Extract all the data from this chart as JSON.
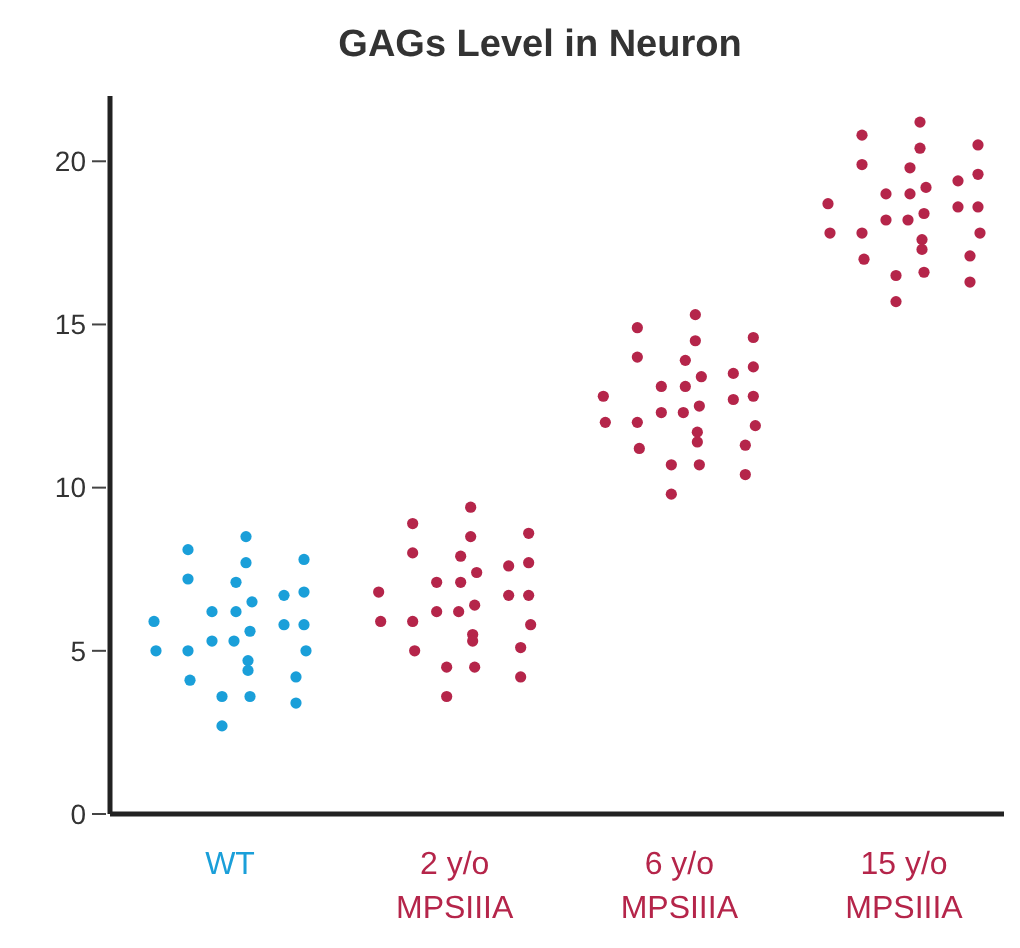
{
  "chart_data": {
    "type": "scatter",
    "title": "GAGs Level in Neuron",
    "categories": [
      "WT",
      "2 y/o MPSIIIA",
      "6 y/o MPSIIIA",
      "15 y/o MPSIIIA"
    ],
    "ylim": [
      0,
      22
    ],
    "yticks": [
      0,
      5,
      10,
      15,
      20
    ],
    "grid": false,
    "marker": "circle",
    "series": [
      {
        "color": "#1a9fd9",
        "x": [
          "WT",
          "WT",
          "WT",
          "WT",
          "WT",
          "WT",
          "WT",
          "WT",
          "WT",
          "WT",
          "WT",
          "WT",
          "WT",
          "WT",
          "WT",
          "WT",
          "WT",
          "WT",
          "WT",
          "WT",
          "WT",
          "WT",
          "WT",
          "WT",
          "WT",
          "WT",
          "WT",
          "WT"
        ],
        "values": [
          5.9,
          5.0,
          8.1,
          7.2,
          5.0,
          4.1,
          6.2,
          5.3,
          3.6,
          2.7,
          7.1,
          6.2,
          5.3,
          8.5,
          7.7,
          6.5,
          5.6,
          4.7,
          4.4,
          3.6,
          6.7,
          5.8,
          4.2,
          3.4,
          7.8,
          6.8,
          5.8,
          5.0
        ]
      },
      {
        "color": "#b5254a",
        "x": [
          "2 y/o MPSIIIA",
          "2 y/o MPSIIIA",
          "2 y/o MPSIIIA",
          "2 y/o MPSIIIA",
          "2 y/o MPSIIIA",
          "2 y/o MPSIIIA",
          "2 y/o MPSIIIA",
          "2 y/o MPSIIIA",
          "2 y/o MPSIIIA",
          "2 y/o MPSIIIA",
          "2 y/o MPSIIIA",
          "2 y/o MPSIIIA",
          "2 y/o MPSIIIA",
          "2 y/o MPSIIIA",
          "2 y/o MPSIIIA",
          "2 y/o MPSIIIA",
          "2 y/o MPSIIIA",
          "2 y/o MPSIIIA",
          "2 y/o MPSIIIA",
          "2 y/o MPSIIIA",
          "2 y/o MPSIIIA",
          "2 y/o MPSIIIA",
          "2 y/o MPSIIIA",
          "2 y/o MPSIIIA",
          "2 y/o MPSIIIA",
          "2 y/o MPSIIIA",
          "2 y/o MPSIIIA",
          "2 y/o MPSIIIA"
        ],
        "values": [
          6.8,
          5.9,
          8.9,
          8.0,
          5.9,
          5.0,
          7.1,
          6.2,
          4.5,
          3.6,
          7.9,
          7.1,
          6.2,
          9.4,
          8.5,
          7.4,
          6.4,
          5.5,
          5.3,
          4.5,
          7.6,
          6.7,
          5.1,
          4.2,
          8.6,
          7.7,
          6.7,
          5.8
        ]
      },
      {
        "color": "#b5254a",
        "x": [
          "6 y/o MPSIIIA",
          "6 y/o MPSIIIA",
          "6 y/o MPSIIIA",
          "6 y/o MPSIIIA",
          "6 y/o MPSIIIA",
          "6 y/o MPSIIIA",
          "6 y/o MPSIIIA",
          "6 y/o MPSIIIA",
          "6 y/o MPSIIIA",
          "6 y/o MPSIIIA",
          "6 y/o MPSIIIA",
          "6 y/o MPSIIIA",
          "6 y/o MPSIIIA",
          "6 y/o MPSIIIA",
          "6 y/o MPSIIIA",
          "6 y/o MPSIIIA",
          "6 y/o MPSIIIA",
          "6 y/o MPSIIIA",
          "6 y/o MPSIIIA",
          "6 y/o MPSIIIA",
          "6 y/o MPSIIIA",
          "6 y/o MPSIIIA",
          "6 y/o MPSIIIA",
          "6 y/o MPSIIIA",
          "6 y/o MPSIIIA",
          "6 y/o MPSIIIA",
          "6 y/o MPSIIIA",
          "6 y/o MPSIIIA"
        ],
        "values": [
          12.8,
          12.0,
          14.9,
          14.0,
          12.0,
          11.2,
          13.1,
          12.3,
          10.7,
          9.8,
          13.9,
          13.1,
          12.3,
          15.3,
          14.5,
          13.4,
          12.5,
          11.7,
          11.4,
          10.7,
          13.5,
          12.7,
          11.3,
          10.4,
          14.6,
          13.7,
          12.8,
          11.9
        ]
      },
      {
        "color": "#b5254a",
        "x": [
          "15 y/o MPSIIIA",
          "15 y/o MPSIIIA",
          "15 y/o MPSIIIA",
          "15 y/o MPSIIIA",
          "15 y/o MPSIIIA",
          "15 y/o MPSIIIA",
          "15 y/o MPSIIIA",
          "15 y/o MPSIIIA",
          "15 y/o MPSIIIA",
          "15 y/o MPSIIIA",
          "15 y/o MPSIIIA",
          "15 y/o MPSIIIA",
          "15 y/o MPSIIIA",
          "15 y/o MPSIIIA",
          "15 y/o MPSIIIA",
          "15 y/o MPSIIIA",
          "15 y/o MPSIIIA",
          "15 y/o MPSIIIA",
          "15 y/o MPSIIIA",
          "15 y/o MPSIIIA",
          "15 y/o MPSIIIA",
          "15 y/o MPSIIIA",
          "15 y/o MPSIIIA",
          "15 y/o MPSIIIA",
          "15 y/o MPSIIIA",
          "15 y/o MPSIIIA",
          "15 y/o MPSIIIA",
          "15 y/o MPSIIIA"
        ],
        "values": [
          18.7,
          17.8,
          20.8,
          19.9,
          17.8,
          17.0,
          19.0,
          18.2,
          16.5,
          15.7,
          19.8,
          19.0,
          18.2,
          21.2,
          20.4,
          19.2,
          18.4,
          17.6,
          17.3,
          16.6,
          19.4,
          18.6,
          17.1,
          16.3,
          20.5,
          19.6,
          18.6,
          17.8
        ]
      }
    ]
  }
}
